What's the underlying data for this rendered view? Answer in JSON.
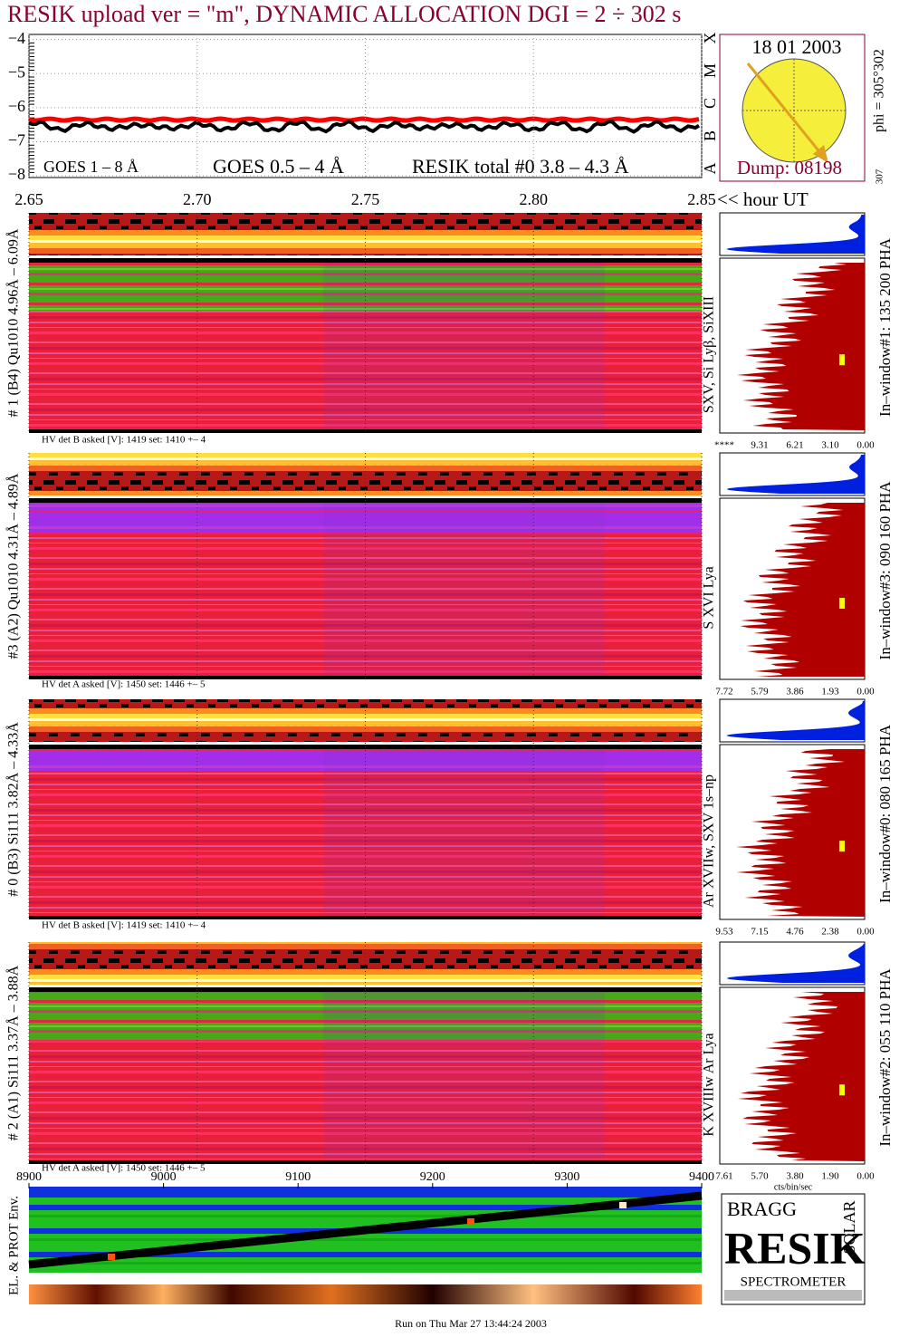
{
  "title": "RESIK upload ver = \"m\", DYNAMIC ALLOCATION  DGI =   2 ÷ 302 s",
  "lightcurve": {
    "ylim": [
      -3.85,
      -8.05
    ],
    "yticks": [
      {
        "value": -4,
        "label": "−4"
      },
      {
        "value": -5,
        "label": "−5"
      },
      {
        "value": -6,
        "label": "−6"
      },
      {
        "value": -7,
        "label": "−7"
      },
      {
        "value": -8,
        "label": "−8"
      }
    ],
    "legend": [
      {
        "name": "GOES 1 – 8 Å",
        "color": "#ff0000"
      },
      {
        "name": "GOES 0.5 – 4 Å",
        "color": "#0000ff"
      },
      {
        "name": "RESIK total #0  3.8 – 4.3 Å",
        "color": "#000000"
      }
    ],
    "classes": [
      "X",
      "M",
      "C",
      "B",
      "A"
    ]
  },
  "sun": {
    "date": "18 01 2003",
    "dump": "Dump: 08198",
    "phi": "phi = 305°302",
    "phi_end": "307"
  },
  "time_axis": {
    "xlim": [
      2.65,
      2.85
    ],
    "ticks": [
      {
        "value": 2.65,
        "label": "2.65"
      },
      {
        "value": 2.7,
        "label": "2.70"
      },
      {
        "value": 2.75,
        "label": "2.75"
      },
      {
        "value": 2.8,
        "label": "2.80"
      },
      {
        "value": 2.85,
        "label": "2.85"
      }
    ],
    "unit": "<< hour UT"
  },
  "panels": [
    {
      "label": "# 1 (B4) Qu1010 4.96Å – 6.09Å",
      "lines": "SXV, Si Lyβ, SiXIII",
      "window": "In–window#1:  135 200 PHA",
      "hv": "HV det B asked [V]:  1419 set:  1410 +–    4",
      "histo_ticks": [
        "****",
        "9.31",
        "6.21",
        "3.10",
        "0.00"
      ]
    },
    {
      "label": "#3 (A2) Qu1010  4.31Å – 4.89Å",
      "lines": "S XVI Lya",
      "window": "In–window#3:  090 160 PHA",
      "hv": "HV det A asked [V]:  1450 set:  1446 +–    5",
      "histo_ticks": [
        "7.72",
        "5.79",
        "3.86",
        "1.93",
        "0.00"
      ]
    },
    {
      "label": "# 0 (B3) Si111  3.82Å – 4.33Å",
      "lines": "Ar XVIIw,  SXV 1s–np",
      "window": "In–window#0:  080 165 PHA",
      "hv": "HV det B asked [V]:  1419 set:  1410 +–    4",
      "histo_ticks": [
        "9.53",
        "7.15",
        "4.76",
        "2.38",
        "0.00"
      ]
    },
    {
      "label": "# 2 (A1) Si111  3.37Å – 3.88Å",
      "lines": "K XVIIIw  Ar Lya",
      "window": "In–window#2:  055 110 PHA",
      "hv": "HV det A asked [V]:  1450 set:  1446 +–    5",
      "histo_ticks": [
        "7.61",
        "5.70",
        "3.80",
        "1.90",
        "0.00"
      ]
    }
  ],
  "histo_unit": "cts/bin/sec",
  "env": {
    "label": "EL. & PROT Env.",
    "xlim": [
      8900,
      9400
    ],
    "ticks": [
      8900,
      9000,
      9100,
      9200,
      9300,
      9400
    ]
  },
  "logo": {
    "bragg": "BRAGG",
    "resik": "RESIK",
    "solar": "SOLAR",
    "name": "SPECTROMETER"
  },
  "footer": "Run on Thu Mar 27 13:44:24 2003"
}
